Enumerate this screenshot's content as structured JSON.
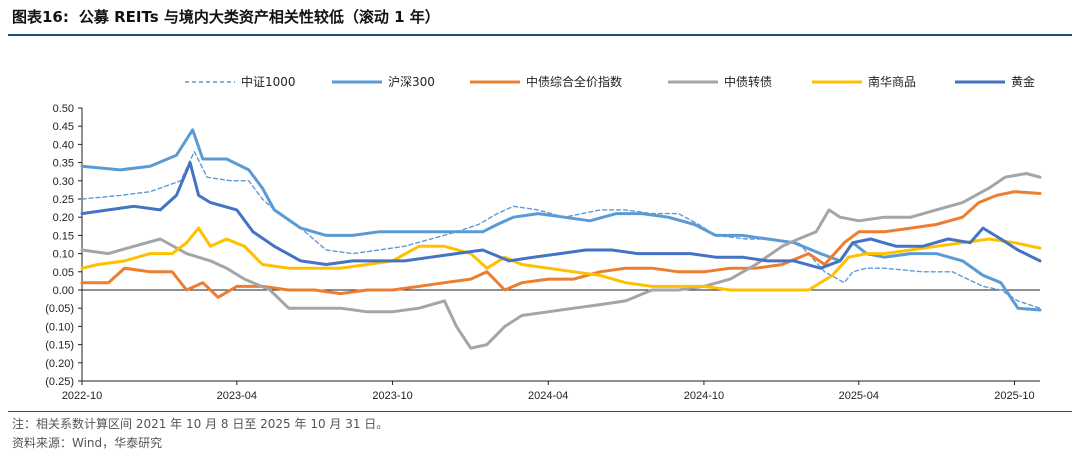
{
  "header": {
    "label": "图表16:",
    "title": "公募 REITs 与境内大类资产相关性较低（滚动 1 年）"
  },
  "footer": {
    "note": "注：相关系数计算区间 2021 年 10 月 8 日至 2025 年 10 月 31 日。",
    "source": "资料来源：Wind，华泰研究"
  },
  "chart_data": {
    "type": "line",
    "title": "",
    "xlabel": "",
    "ylabel": "",
    "ylim": [
      -0.25,
      0.5
    ],
    "yticks": [
      0.5,
      0.45,
      0.4,
      0.35,
      0.3,
      0.25,
      0.2,
      0.15,
      0.1,
      0.05,
      0.0,
      -0.05,
      -0.1,
      -0.15,
      -0.2,
      -0.25
    ],
    "ytick_labels": [
      "0.50",
      "0.45",
      "0.40",
      "0.35",
      "0.30",
      "0.25",
      "0.20",
      "0.15",
      "0.10",
      "0.05",
      "0.00",
      "(0.05)",
      "(0.10)",
      "(0.15)",
      "(0.20)",
      "(0.25)"
    ],
    "xticks": [
      "2022-10",
      "2023-04",
      "2023-10",
      "2024-04",
      "2024-10",
      "2025-04",
      "2025-10"
    ],
    "x_start": "2022-10-01",
    "x_end": "2025-10-31",
    "grid": false,
    "legend_position": "top",
    "series": [
      {
        "name": "中证1000",
        "color": "#5b9bd5",
        "dashed": true,
        "points": [
          [
            "2022-10-01",
            0.25
          ],
          [
            "2022-11-15",
            0.26
          ],
          [
            "2022-12-20",
            0.27
          ],
          [
            "2023-01-25",
            0.3
          ],
          [
            "2023-02-10",
            0.38
          ],
          [
            "2023-02-25",
            0.31
          ],
          [
            "2023-03-25",
            0.3
          ],
          [
            "2023-04-15",
            0.3
          ],
          [
            "2023-05-01",
            0.25
          ],
          [
            "2023-05-20",
            0.21
          ],
          [
            "2023-06-15",
            0.17
          ],
          [
            "2023-07-15",
            0.11
          ],
          [
            "2023-08-15",
            0.1
          ],
          [
            "2023-09-15",
            0.11
          ],
          [
            "2023-10-15",
            0.12
          ],
          [
            "2023-11-15",
            0.14
          ],
          [
            "2023-12-15",
            0.16
          ],
          [
            "2024-01-10",
            0.18
          ],
          [
            "2024-02-01",
            0.21
          ],
          [
            "2024-02-20",
            0.23
          ],
          [
            "2024-03-20",
            0.22
          ],
          [
            "2024-04-20",
            0.2
          ],
          [
            "2024-06-01",
            0.22
          ],
          [
            "2024-07-01",
            0.22
          ],
          [
            "2024-08-01",
            0.21
          ],
          [
            "2024-09-01",
            0.21
          ],
          [
            "2024-09-25",
            0.18
          ],
          [
            "2024-10-15",
            0.15
          ],
          [
            "2024-11-20",
            0.14
          ],
          [
            "2024-12-20",
            0.14
          ],
          [
            "2025-01-20",
            0.13
          ],
          [
            "2025-02-20",
            0.05
          ],
          [
            "2025-03-15",
            0.02
          ],
          [
            "2025-03-25",
            0.05
          ],
          [
            "2025-04-10",
            0.06
          ],
          [
            "2025-05-01",
            0.06
          ],
          [
            "2025-06-15",
            0.05
          ],
          [
            "2025-07-20",
            0.05
          ],
          [
            "2025-08-25",
            0.01
          ],
          [
            "2025-09-15",
            0.0
          ],
          [
            "2025-10-05",
            -0.03
          ],
          [
            "2025-10-31",
            -0.05
          ]
        ]
      },
      {
        "name": "沪深300",
        "color": "#5b9bd5",
        "dashed": false,
        "points": [
          [
            "2022-10-01",
            0.34
          ],
          [
            "2022-11-15",
            0.33
          ],
          [
            "2022-12-20",
            0.34
          ],
          [
            "2023-01-20",
            0.37
          ],
          [
            "2023-02-08",
            0.44
          ],
          [
            "2023-02-20",
            0.36
          ],
          [
            "2023-03-20",
            0.36
          ],
          [
            "2023-04-15",
            0.33
          ],
          [
            "2023-05-01",
            0.28
          ],
          [
            "2023-05-15",
            0.22
          ],
          [
            "2023-06-15",
            0.17
          ],
          [
            "2023-07-15",
            0.15
          ],
          [
            "2023-08-15",
            0.15
          ],
          [
            "2023-09-15",
            0.16
          ],
          [
            "2023-10-15",
            0.16
          ],
          [
            "2023-11-15",
            0.16
          ],
          [
            "2023-12-15",
            0.16
          ],
          [
            "2024-01-15",
            0.16
          ],
          [
            "2024-02-01",
            0.18
          ],
          [
            "2024-02-20",
            0.2
          ],
          [
            "2024-03-20",
            0.21
          ],
          [
            "2024-04-20",
            0.2
          ],
          [
            "2024-05-20",
            0.19
          ],
          [
            "2024-06-20",
            0.21
          ],
          [
            "2024-07-20",
            0.21
          ],
          [
            "2024-08-20",
            0.2
          ],
          [
            "2024-09-20",
            0.18
          ],
          [
            "2024-10-15",
            0.15
          ],
          [
            "2024-11-15",
            0.15
          ],
          [
            "2024-12-15",
            0.14
          ],
          [
            "2025-01-15",
            0.13
          ],
          [
            "2025-02-15",
            0.1
          ],
          [
            "2025-03-10",
            0.08
          ],
          [
            "2025-03-25",
            0.13
          ],
          [
            "2025-04-10",
            0.1
          ],
          [
            "2025-05-01",
            0.09
          ],
          [
            "2025-06-01",
            0.1
          ],
          [
            "2025-07-01",
            0.1
          ],
          [
            "2025-08-01",
            0.08
          ],
          [
            "2025-08-25",
            0.04
          ],
          [
            "2025-09-15",
            0.02
          ],
          [
            "2025-10-05",
            -0.05
          ],
          [
            "2025-10-31",
            -0.055
          ]
        ]
      },
      {
        "name": "中债综合全价指数",
        "color": "#ed7d31",
        "dashed": false,
        "points": [
          [
            "2022-10-01",
            0.02
          ],
          [
            "2022-11-01",
            0.02
          ],
          [
            "2022-11-20",
            0.06
          ],
          [
            "2022-12-20",
            0.05
          ],
          [
            "2023-01-15",
            0.05
          ],
          [
            "2023-02-01",
            0.0
          ],
          [
            "2023-02-20",
            0.02
          ],
          [
            "2023-03-10",
            -0.02
          ],
          [
            "2023-04-01",
            0.01
          ],
          [
            "2023-05-01",
            0.01
          ],
          [
            "2023-06-01",
            0.0
          ],
          [
            "2023-07-01",
            0.0
          ],
          [
            "2023-08-01",
            -0.01
          ],
          [
            "2023-09-01",
            0.0
          ],
          [
            "2023-10-01",
            0.0
          ],
          [
            "2023-11-01",
            0.01
          ],
          [
            "2023-12-01",
            0.02
          ],
          [
            "2024-01-01",
            0.03
          ],
          [
            "2024-01-20",
            0.05
          ],
          [
            "2024-02-10",
            0.0
          ],
          [
            "2024-03-01",
            0.02
          ],
          [
            "2024-04-01",
            0.03
          ],
          [
            "2024-05-01",
            0.03
          ],
          [
            "2024-06-01",
            0.05
          ],
          [
            "2024-07-01",
            0.06
          ],
          [
            "2024-08-01",
            0.06
          ],
          [
            "2024-09-01",
            0.05
          ],
          [
            "2024-10-01",
            0.05
          ],
          [
            "2024-11-01",
            0.06
          ],
          [
            "2024-12-01",
            0.06
          ],
          [
            "2025-01-01",
            0.07
          ],
          [
            "2025-02-01",
            0.1
          ],
          [
            "2025-02-20",
            0.07
          ],
          [
            "2025-03-15",
            0.13
          ],
          [
            "2025-04-01",
            0.16
          ],
          [
            "2025-05-01",
            0.16
          ],
          [
            "2025-06-01",
            0.17
          ],
          [
            "2025-07-01",
            0.18
          ],
          [
            "2025-08-01",
            0.2
          ],
          [
            "2025-08-20",
            0.24
          ],
          [
            "2025-09-10",
            0.26
          ],
          [
            "2025-10-01",
            0.27
          ],
          [
            "2025-10-31",
            0.265
          ]
        ]
      },
      {
        "name": "中债转债",
        "color": "#a5a5a5",
        "dashed": false,
        "points": [
          [
            "2022-10-01",
            0.11
          ],
          [
            "2022-11-01",
            0.1
          ],
          [
            "2022-12-01",
            0.12
          ],
          [
            "2023-01-01",
            0.14
          ],
          [
            "2023-02-01",
            0.1
          ],
          [
            "2023-03-01",
            0.08
          ],
          [
            "2023-03-20",
            0.06
          ],
          [
            "2023-04-10",
            0.03
          ],
          [
            "2023-05-10",
            0.0
          ],
          [
            "2023-06-01",
            -0.05
          ],
          [
            "2023-07-01",
            -0.05
          ],
          [
            "2023-08-01",
            -0.05
          ],
          [
            "2023-09-01",
            -0.06
          ],
          [
            "2023-10-01",
            -0.06
          ],
          [
            "2023-11-01",
            -0.05
          ],
          [
            "2023-12-01",
            -0.03
          ],
          [
            "2023-12-15",
            -0.1
          ],
          [
            "2024-01-01",
            -0.16
          ],
          [
            "2024-01-20",
            -0.15
          ],
          [
            "2024-02-10",
            -0.1
          ],
          [
            "2024-03-01",
            -0.07
          ],
          [
            "2024-04-01",
            -0.06
          ],
          [
            "2024-05-01",
            -0.05
          ],
          [
            "2024-06-01",
            -0.04
          ],
          [
            "2024-07-01",
            -0.03
          ],
          [
            "2024-08-01",
            0.0
          ],
          [
            "2024-09-01",
            0.0
          ],
          [
            "2024-10-01",
            0.01
          ],
          [
            "2024-11-01",
            0.03
          ],
          [
            "2024-12-01",
            0.07
          ],
          [
            "2025-01-01",
            0.12
          ],
          [
            "2025-01-20",
            0.14
          ],
          [
            "2025-02-10",
            0.16
          ],
          [
            "2025-02-25",
            0.22
          ],
          [
            "2025-03-10",
            0.2
          ],
          [
            "2025-04-01",
            0.19
          ],
          [
            "2025-05-01",
            0.2
          ],
          [
            "2025-06-01",
            0.2
          ],
          [
            "2025-07-01",
            0.22
          ],
          [
            "2025-08-01",
            0.24
          ],
          [
            "2025-09-01",
            0.28
          ],
          [
            "2025-09-20",
            0.31
          ],
          [
            "2025-10-15",
            0.32
          ],
          [
            "2025-10-31",
            0.31
          ]
        ]
      },
      {
        "name": "南华商品",
        "color": "#ffc000",
        "dashed": false,
        "points": [
          [
            "2022-10-01",
            0.06
          ],
          [
            "2022-10-20",
            0.07
          ],
          [
            "2022-11-20",
            0.08
          ],
          [
            "2022-12-20",
            0.1
          ],
          [
            "2023-01-15",
            0.1
          ],
          [
            "2023-02-01",
            0.13
          ],
          [
            "2023-02-15",
            0.17
          ],
          [
            "2023-03-01",
            0.12
          ],
          [
            "2023-03-20",
            0.14
          ],
          [
            "2023-04-10",
            0.12
          ],
          [
            "2023-05-01",
            0.07
          ],
          [
            "2023-06-01",
            0.06
          ],
          [
            "2023-07-01",
            0.06
          ],
          [
            "2023-08-01",
            0.06
          ],
          [
            "2023-09-01",
            0.07
          ],
          [
            "2023-10-01",
            0.08
          ],
          [
            "2023-11-01",
            0.12
          ],
          [
            "2023-12-01",
            0.12
          ],
          [
            "2024-01-01",
            0.1
          ],
          [
            "2024-01-20",
            0.06
          ],
          [
            "2024-02-10",
            0.09
          ],
          [
            "2024-03-01",
            0.07
          ],
          [
            "2024-04-01",
            0.06
          ],
          [
            "2024-05-01",
            0.05
          ],
          [
            "2024-06-01",
            0.04
          ],
          [
            "2024-07-01",
            0.02
          ],
          [
            "2024-08-01",
            0.01
          ],
          [
            "2024-09-01",
            0.01
          ],
          [
            "2024-10-01",
            0.01
          ],
          [
            "2024-11-01",
            0.0
          ],
          [
            "2024-12-01",
            0.0
          ],
          [
            "2025-01-01",
            0.0
          ],
          [
            "2025-02-01",
            0.0
          ],
          [
            "2025-03-01",
            0.04
          ],
          [
            "2025-03-20",
            0.09
          ],
          [
            "2025-04-10",
            0.1
          ],
          [
            "2025-05-01",
            0.1
          ],
          [
            "2025-06-01",
            0.11
          ],
          [
            "2025-07-01",
            0.12
          ],
          [
            "2025-08-01",
            0.13
          ],
          [
            "2025-09-01",
            0.14
          ],
          [
            "2025-10-01",
            0.13
          ],
          [
            "2025-10-31",
            0.115
          ]
        ]
      },
      {
        "name": "黄金",
        "color": "#4472c4",
        "dashed": false,
        "points": [
          [
            "2022-10-01",
            0.21
          ],
          [
            "2022-11-01",
            0.22
          ],
          [
            "2022-12-01",
            0.23
          ],
          [
            "2023-01-01",
            0.22
          ],
          [
            "2023-01-20",
            0.26
          ],
          [
            "2023-02-05",
            0.35
          ],
          [
            "2023-02-15",
            0.26
          ],
          [
            "2023-03-01",
            0.24
          ],
          [
            "2023-04-01",
            0.22
          ],
          [
            "2023-04-20",
            0.16
          ],
          [
            "2023-05-15",
            0.12
          ],
          [
            "2023-06-15",
            0.08
          ],
          [
            "2023-07-15",
            0.07
          ],
          [
            "2023-08-15",
            0.08
          ],
          [
            "2023-09-15",
            0.08
          ],
          [
            "2023-10-15",
            0.08
          ],
          [
            "2023-11-15",
            0.09
          ],
          [
            "2023-12-15",
            0.1
          ],
          [
            "2024-01-15",
            0.11
          ],
          [
            "2024-02-15",
            0.08
          ],
          [
            "2024-03-15",
            0.09
          ],
          [
            "2024-04-15",
            0.1
          ],
          [
            "2024-05-15",
            0.11
          ],
          [
            "2024-06-15",
            0.11
          ],
          [
            "2024-07-15",
            0.1
          ],
          [
            "2024-08-15",
            0.1
          ],
          [
            "2024-09-15",
            0.1
          ],
          [
            "2024-10-15",
            0.09
          ],
          [
            "2024-11-15",
            0.09
          ],
          [
            "2024-12-15",
            0.08
          ],
          [
            "2025-01-15",
            0.08
          ],
          [
            "2025-02-15",
            0.06
          ],
          [
            "2025-03-10",
            0.08
          ],
          [
            "2025-03-25",
            0.13
          ],
          [
            "2025-04-15",
            0.14
          ],
          [
            "2025-05-15",
            0.12
          ],
          [
            "2025-06-15",
            0.12
          ],
          [
            "2025-07-15",
            0.14
          ],
          [
            "2025-08-10",
            0.13
          ],
          [
            "2025-08-25",
            0.17
          ],
          [
            "2025-09-15",
            0.14
          ],
          [
            "2025-10-05",
            0.11
          ],
          [
            "2025-10-31",
            0.08
          ]
        ]
      }
    ]
  }
}
